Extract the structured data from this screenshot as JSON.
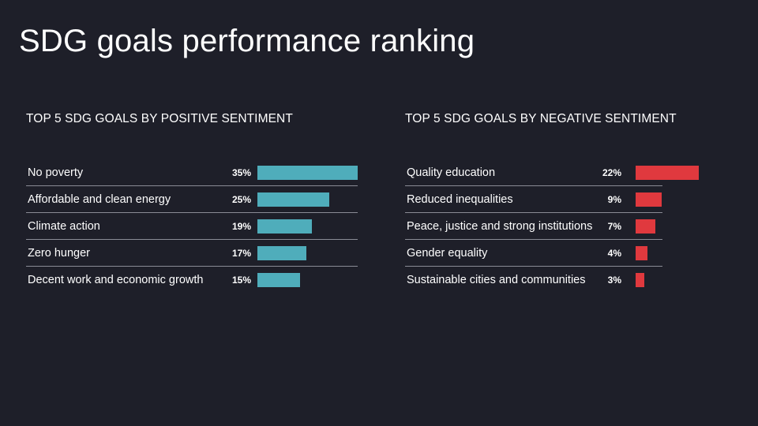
{
  "title": "SDG goals performance ranking",
  "colors": {
    "positive": "#4fadbb",
    "negative": "#e0393e",
    "background": "#1e1f29"
  },
  "chart_data": [
    {
      "type": "bar",
      "orientation": "horizontal",
      "title": "TOP 5 SDG GOALS BY POSITIVE SENTIMENT",
      "categories": [
        "No poverty",
        "Affordable and clean energy",
        "Climate action",
        "Zero hunger",
        "Decent work and economic growth"
      ],
      "values": [
        35,
        25,
        19,
        17,
        15
      ],
      "value_labels": [
        "35%",
        "25%",
        "19%",
        "17%",
        "15%"
      ],
      "unit": "%",
      "color": "#4fadbb"
    },
    {
      "type": "bar",
      "orientation": "horizontal",
      "title": "TOP 5 SDG GOALS BY NEGATIVE SENTIMENT",
      "categories": [
        "Quality education",
        "Reduced inequalities",
        "Peace, justice and strong institutions",
        "Gender equality",
        "Sustainable cities and communities"
      ],
      "values": [
        22,
        9,
        7,
        4,
        3
      ],
      "value_labels": [
        "22%",
        "9%",
        "7%",
        "4%",
        "3%"
      ],
      "unit": "%",
      "color": "#e0393e"
    }
  ]
}
